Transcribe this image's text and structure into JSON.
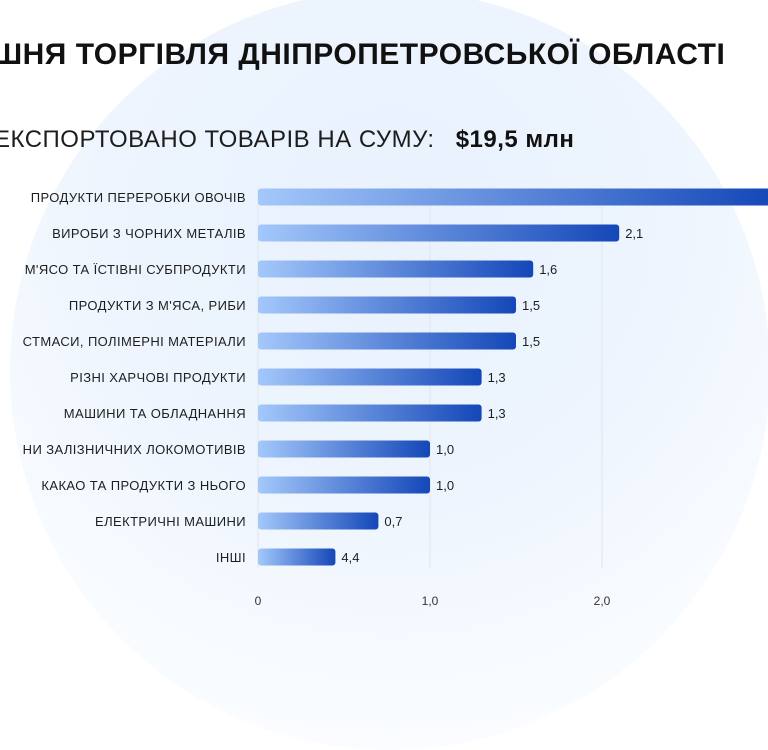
{
  "header": {
    "title": "ШНЯ ТОРГІВЛЯ ДНІПРОПЕТРОВСЬКОЇ ОБЛАСТІ",
    "subtitle_prefix": "ЕКСПОРТОВАНО ТОВАРІВ НА СУМУ:",
    "subtitle_amount": "$19,5 млн"
  },
  "colors": {
    "bar_start": "#a4c8fb",
    "bar_end": "#1447b8",
    "grid": "#e1e5ec"
  },
  "chart_data": {
    "type": "bar",
    "orientation": "horizontal",
    "categories": [
      "ПРОДУКТИ ПЕРЕРОБКИ ОВОЧІВ",
      "ВИРОБИ З ЧОРНИХ МЕТАЛІВ",
      "М'ЯСО ТА ЇСТІВНІ СУБПРОДУКТИ",
      "ПРОДУКТИ З М'ЯСА, РИБИ",
      "СТМАСИ, ПОЛІМЕРНІ МАТЕРІАЛИ",
      "РІЗНІ ХАРЧОВІ ПРОДУКТИ",
      "МАШИНИ ТА ОБЛАДНАННЯ",
      "НИ ЗАЛІЗНИЧНИХ ЛОКОМОТИВІВ",
      "КАКАО ТА ПРОДУКТИ З НЬОГО",
      "ЕЛЕКТРИЧНІ МАШИНИ",
      "ІНШІ"
    ],
    "values": [
      3.0,
      2.1,
      1.6,
      1.5,
      1.5,
      1.3,
      1.3,
      1.0,
      1.0,
      0.7,
      4.4
    ],
    "value_labels": [
      "",
      "2,1",
      "1,6",
      "1,5",
      "1,5",
      "1,3",
      "1,3",
      "1,0",
      "1,0",
      "0,7",
      "4,4"
    ],
    "bar_display_values": [
      3.0,
      2.1,
      1.6,
      1.5,
      1.5,
      1.3,
      1.3,
      1.0,
      1.0,
      0.7,
      0.45
    ],
    "xticks": [
      0,
      1.0,
      2.0
    ],
    "xtick_labels": [
      "0",
      "1,0",
      "2,0"
    ],
    "xlim": [
      0,
      3.0
    ],
    "grid": true
  }
}
